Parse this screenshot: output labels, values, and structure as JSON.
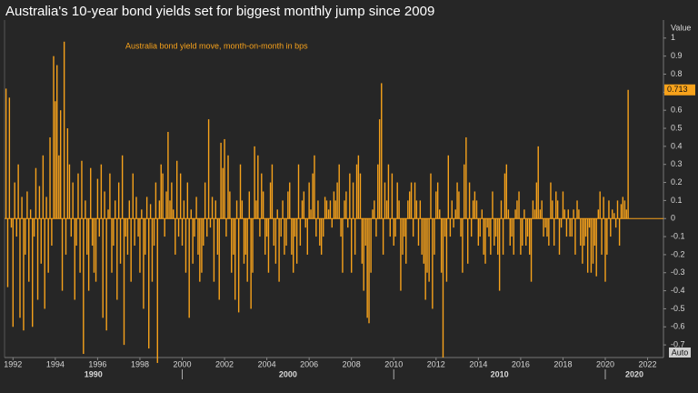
{
  "chart_data": {
    "type": "bar",
    "title": "Australia's 10-year bond yields set for biggest monthly jump since 2009",
    "subtitle": "Australia bond yield move, month-on-month in bps",
    "y_axis_title": "Value",
    "current_value_label": "0.713",
    "button": "Auto",
    "color": "#f7a21b",
    "xlim": [
      1991.6,
      2022.75
    ],
    "xticks": [
      1992,
      1994,
      1996,
      1998,
      2000,
      2002,
      2004,
      2006,
      2008,
      2010,
      2012,
      2014,
      2016,
      2018,
      2020,
      2022
    ],
    "decades": [
      1990,
      2000,
      2010,
      2020
    ],
    "ylim": [
      -0.77,
      1.1
    ],
    "yticks": [
      -0.7,
      -0.6,
      -0.5,
      -0.4,
      -0.3,
      -0.2,
      -0.1,
      0,
      0.1,
      0.2,
      0.3,
      0.4,
      0.5,
      0.6,
      0.7,
      0.8,
      0.9,
      1
    ],
    "x": [
      1991.67,
      1991.75,
      1991.83,
      1991.92,
      1992,
      1992.08,
      1992.17,
      1992.25,
      1992.33,
      1992.42,
      1992.5,
      1992.58,
      1992.67,
      1992.75,
      1992.83,
      1992.92,
      1993,
      1993.08,
      1993.17,
      1993.25,
      1993.33,
      1993.42,
      1993.5,
      1993.58,
      1993.67,
      1993.75,
      1993.83,
      1993.92,
      1994,
      1994.08,
      1994.17,
      1994.25,
      1994.33,
      1994.42,
      1994.5,
      1994.58,
      1994.67,
      1994.75,
      1994.83,
      1994.92,
      1995,
      1995.08,
      1995.17,
      1995.25,
      1995.33,
      1995.42,
      1995.5,
      1995.58,
      1995.67,
      1995.75,
      1995.83,
      1995.92,
      1996,
      1996.08,
      1996.17,
      1996.25,
      1996.33,
      1996.42,
      1996.5,
      1996.58,
      1996.67,
      1996.75,
      1996.83,
      1996.92,
      1997,
      1997.08,
      1997.17,
      1997.25,
      1997.33,
      1997.42,
      1997.5,
      1997.58,
      1997.67,
      1997.75,
      1997.83,
      1997.92,
      1998,
      1998.08,
      1998.17,
      1998.25,
      1998.33,
      1998.42,
      1998.5,
      1998.58,
      1998.67,
      1998.75,
      1998.83,
      1998.92,
      1999,
      1999.08,
      1999.17,
      1999.25,
      1999.33,
      1999.42,
      1999.5,
      1999.58,
      1999.67,
      1999.75,
      1999.83,
      1999.92,
      2000,
      2000.08,
      2000.17,
      2000.25,
      2000.33,
      2000.42,
      2000.5,
      2000.58,
      2000.67,
      2000.75,
      2000.83,
      2000.92,
      2001,
      2001.08,
      2001.17,
      2001.25,
      2001.33,
      2001.42,
      2001.5,
      2001.58,
      2001.67,
      2001.75,
      2001.83,
      2001.92,
      2002,
      2002.08,
      2002.17,
      2002.25,
      2002.33,
      2002.42,
      2002.5,
      2002.58,
      2002.67,
      2002.75,
      2002.83,
      2002.92,
      2003,
      2003.08,
      2003.17,
      2003.25,
      2003.33,
      2003.42,
      2003.5,
      2003.58,
      2003.67,
      2003.75,
      2003.83,
      2003.92,
      2004,
      2004.08,
      2004.17,
      2004.25,
      2004.33,
      2004.42,
      2004.5,
      2004.58,
      2004.67,
      2004.75,
      2004.83,
      2004.92,
      2005,
      2005.08,
      2005.17,
      2005.25,
      2005.33,
      2005.42,
      2005.5,
      2005.58,
      2005.67,
      2005.75,
      2005.83,
      2005.92,
      2006,
      2006.08,
      2006.17,
      2006.25,
      2006.33,
      2006.42,
      2006.5,
      2006.58,
      2006.67,
      2006.75,
      2006.83,
      2006.92,
      2007,
      2007.08,
      2007.17,
      2007.25,
      2007.33,
      2007.42,
      2007.5,
      2007.58,
      2007.67,
      2007.75,
      2007.83,
      2007.92,
      2008,
      2008.08,
      2008.17,
      2008.25,
      2008.33,
      2008.42,
      2008.5,
      2008.58,
      2008.67,
      2008.75,
      2008.83,
      2008.92,
      2009,
      2009.08,
      2009.17,
      2009.25,
      2009.33,
      2009.42,
      2009.5,
      2009.58,
      2009.67,
      2009.75,
      2009.83,
      2009.92,
      2010,
      2010.08,
      2010.17,
      2010.25,
      2010.33,
      2010.42,
      2010.5,
      2010.58,
      2010.67,
      2010.75,
      2010.83,
      2010.92,
      2011,
      2011.08,
      2011.17,
      2011.25,
      2011.33,
      2011.42,
      2011.5,
      2011.58,
      2011.67,
      2011.75,
      2011.83,
      2011.92,
      2012,
      2012.08,
      2012.17,
      2012.25,
      2012.33,
      2012.42,
      2012.5,
      2012.58,
      2012.67,
      2012.75,
      2012.83,
      2012.92,
      2013,
      2013.08,
      2013.17,
      2013.25,
      2013.33,
      2013.42,
      2013.5,
      2013.58,
      2013.67,
      2013.75,
      2013.83,
      2013.92,
      2014,
      2014.08,
      2014.17,
      2014.25,
      2014.33,
      2014.42,
      2014.5,
      2014.58,
      2014.67,
      2014.75,
      2014.83,
      2014.92,
      2015,
      2015.08,
      2015.17,
      2015.25,
      2015.33,
      2015.42,
      2015.5,
      2015.58,
      2015.67,
      2015.75,
      2015.83,
      2015.92,
      2016,
      2016.08,
      2016.17,
      2016.25,
      2016.33,
      2016.42,
      2016.5,
      2016.58,
      2016.67,
      2016.75,
      2016.83,
      2016.92,
      2017,
      2017.08,
      2017.17,
      2017.25,
      2017.33,
      2017.42,
      2017.5,
      2017.58,
      2017.67,
      2017.75,
      2017.83,
      2017.92,
      2018,
      2018.08,
      2018.17,
      2018.25,
      2018.33,
      2018.42,
      2018.5,
      2018.58,
      2018.67,
      2018.75,
      2018.83,
      2018.92,
      2019,
      2019.08,
      2019.17,
      2019.25,
      2019.33,
      2019.42,
      2019.5,
      2019.58,
      2019.67,
      2019.75,
      2019.83,
      2019.92,
      2020,
      2020.08,
      2020.17,
      2020.25,
      2020.33,
      2020.42,
      2020.5,
      2020.58,
      2020.67,
      2020.75,
      2020.83,
      2020.92,
      2021,
      2021.08
    ],
    "values": [
      0.72,
      -0.38,
      0.67,
      -0.05,
      -0.6,
      0.2,
      -0.1,
      0.3,
      -0.55,
      0.12,
      -0.62,
      -0.2,
      0.15,
      -0.35,
      0.05,
      -0.6,
      -0.1,
      0.28,
      -0.45,
      0.18,
      -0.25,
      0.35,
      -0.5,
      0.12,
      -0.3,
      0.45,
      -0.15,
      0.9,
      0.65,
      0.85,
      0.35,
      0.6,
      -0.4,
      0.98,
      -0.2,
      0.5,
      0.3,
      -0.1,
      0.2,
      -0.45,
      -0.15,
      0.25,
      -0.3,
      0.32,
      -0.75,
      0.1,
      -0.2,
      -0.4,
      0.28,
      -0.15,
      -0.3,
      -0.35,
      0.22,
      -0.1,
      0.3,
      -0.55,
      0.15,
      -0.62,
      0.05,
      0.25,
      -0.3,
      -0.15,
      0.1,
      -0.45,
      0.2,
      -0.25,
      0.35,
      -0.7,
      -0.1,
      -0.2,
      0.1,
      -0.35,
      0.25,
      -0.15,
      0.12,
      -0.1,
      -0.3,
      0.05,
      -0.5,
      -0.2,
      0.12,
      -0.72,
      0.08,
      -0.35,
      -0.15,
      0.2,
      -0.8,
      0.1,
      0.3,
      0.25,
      -0.1,
      0.15,
      0.48,
      0.1,
      0.2,
      0.05,
      -0.2,
      0.32,
      -0.1,
      0.25,
      -0.15,
      0.1,
      -0.3,
      0.2,
      -0.55,
      0.05,
      -0.25,
      -0.1,
      0.12,
      -0.2,
      -0.35,
      -0.3,
      -0.15,
      0.2,
      -0.1,
      0.55,
      -0.05,
      0.12,
      -0.35,
      0.1,
      -0.2,
      -0.45,
      0.42,
      0.28,
      0.44,
      -0.1,
      0.35,
      0.15,
      -0.3,
      -0.2,
      -0.45,
      0.1,
      -0.52,
      0.3,
      0.1,
      -0.25,
      -0.2,
      -0.35,
      0.15,
      -0.5,
      -0.3,
      0.4,
      0.1,
      0.35,
      -0.1,
      0.25,
      0.15,
      -0.2,
      -0.1,
      -0.3,
      0.2,
      0.3,
      -0.15,
      -0.25,
      0.05,
      -0.35,
      -0.1,
      0.1,
      -0.2,
      -0.15,
      0.15,
      0.2,
      -0.2,
      -0.3,
      -0.1,
      -0.25,
      0.3,
      -0.15,
      0.1,
      0.15,
      -0.05,
      -0.2,
      0.2,
      0.05,
      0.25,
      0.35,
      -0.1,
      0.1,
      -0.15,
      -0.2,
      -0.1,
      0.12,
      0.1,
      0.05,
      0.1,
      -0.05,
      0.15,
      0.1,
      0.2,
      0.3,
      -0.1,
      -0.3,
      0.1,
      0.15,
      -0.05,
      0.25,
      -0.3,
      0.2,
      -0.2,
      0.3,
      0.35,
      0.25,
      -0.25,
      -0.4,
      -0.15,
      -0.55,
      -0.58,
      -0.3,
      0.05,
      0.1,
      -0.1,
      0.3,
      0.55,
      0.75,
      -0.2,
      0.2,
      0.1,
      0.3,
      -0.1,
      0.25,
      -0.15,
      -0.1,
      0.2,
      0.1,
      -0.4,
      -0.2,
      -0.1,
      -0.25,
      0.1,
      0.15,
      0.2,
      -0.1,
      0.2,
      0.1,
      -0.15,
      0.1,
      -0.2,
      -0.25,
      -0.45,
      -0.3,
      -0.35,
      0.25,
      -0.5,
      -0.2,
      0.15,
      0.2,
      0.05,
      -0.3,
      -0.77,
      -0.1,
      -0.35,
      0.35,
      -0.1,
      0.1,
      -0.05,
      0.05,
      0.2,
      0.15,
      -0.1,
      -0.3,
      0.3,
      0.45,
      -0.25,
      0.2,
      -0.1,
      0.1,
      0.15,
      0.1,
      -0.15,
      -0.1,
      0.05,
      -0.2,
      -0.25,
      -0.05,
      -0.1,
      -0.2,
      0.15,
      -0.15,
      -0.1,
      -0.2,
      -0.4,
      0.1,
      -0.2,
      0.25,
      0.3,
      0.05,
      -0.15,
      -0.1,
      -0.2,
      0.05,
      0.1,
      0.15,
      -0.2,
      -0.15,
      0.05,
      -0.15,
      -0.1,
      -0.2,
      -0.35,
      0.1,
      0.05,
      0.2,
      0.4,
      0.05,
      0.1,
      -0.1,
      -0.05,
      -0.1,
      -0.15,
      0.2,
      0.1,
      -0.15,
      0.15,
      0.1,
      -0.2,
      -0.05,
      0.15,
      0.05,
      -0.1,
      0.05,
      -0.1,
      -0.1,
      0.05,
      -0.2,
      0.1,
      0.05,
      -0.15,
      -0.25,
      -0.15,
      -0.1,
      -0.3,
      -0.05,
      -0.3,
      -0.25,
      -0.15,
      -0.32,
      0.05,
      0.15,
      -0.2,
      0.12,
      -0.35,
      -0.2,
      0.1,
      -0.1,
      0.05,
      0.03,
      -0.05,
      0.1,
      -0.15,
      0.08,
      0.12,
      0.1,
      0.05,
      0.713
    ]
  }
}
